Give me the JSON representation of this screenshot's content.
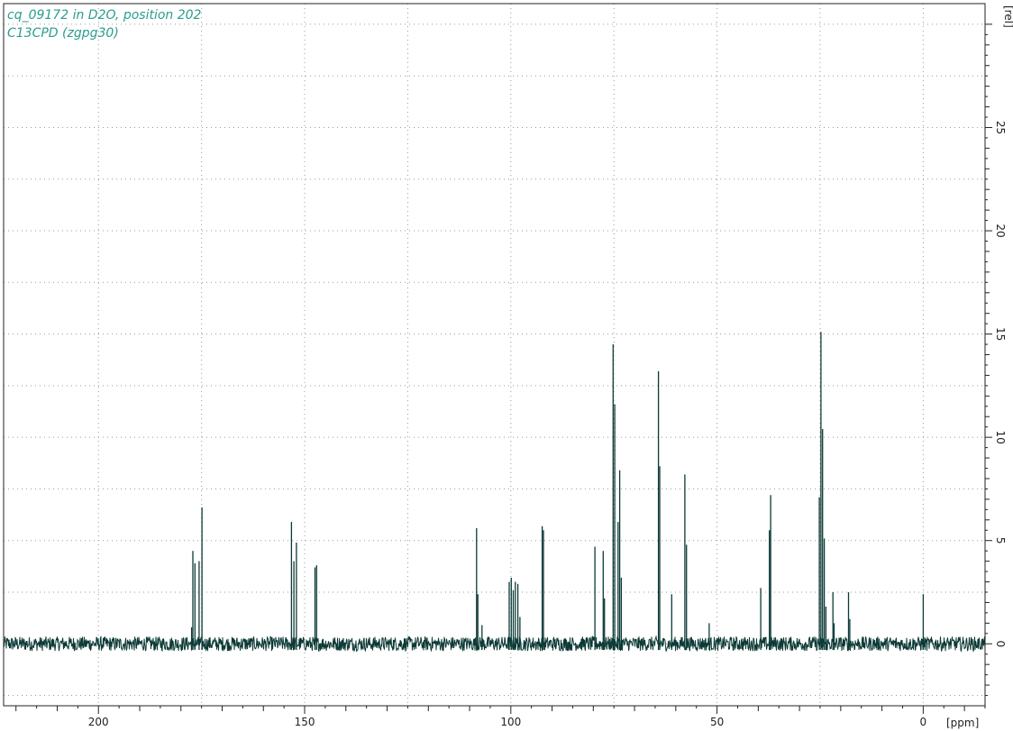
{
  "colors": {
    "title": "#2a9d8f",
    "spectrum": "#0c3a36",
    "grid": "#9a9a9a",
    "axis": "#222222"
  },
  "chart_data": {
    "type": "line",
    "title_lines": [
      "cq_09172 in D2O, position 202",
      "C13CPD (zgpg30)"
    ],
    "xlabel": "[ppm]",
    "ylabel": "[rel]",
    "xlim": [
      223,
      -15
    ],
    "ylim": [
      -3,
      31
    ],
    "x_reversed": true,
    "grid": true,
    "x_ticks_major": [
      200,
      150,
      100,
      50,
      0
    ],
    "y_ticks_major": [
      0,
      5,
      10,
      15,
      20,
      25
    ],
    "noise_level": 0.35,
    "baseline": 0,
    "peaks": [
      {
        "x": 177.4,
        "y": 0.8
      },
      {
        "x": 177.1,
        "y": 4.5
      },
      {
        "x": 176.6,
        "y": 3.9
      },
      {
        "x": 175.6,
        "y": 4.0
      },
      {
        "x": 174.9,
        "y": 6.6
      },
      {
        "x": 153.2,
        "y": 5.9
      },
      {
        "x": 152.6,
        "y": 4.0
      },
      {
        "x": 152.0,
        "y": 4.9
      },
      {
        "x": 147.5,
        "y": 3.7
      },
      {
        "x": 147.1,
        "y": 3.8
      },
      {
        "x": 108.3,
        "y": 5.6
      },
      {
        "x": 108.0,
        "y": 2.4
      },
      {
        "x": 107.0,
        "y": 0.9
      },
      {
        "x": 100.4,
        "y": 3.0
      },
      {
        "x": 99.9,
        "y": 3.2
      },
      {
        "x": 99.4,
        "y": 2.6
      },
      {
        "x": 98.9,
        "y": 3.0
      },
      {
        "x": 98.3,
        "y": 2.9
      },
      {
        "x": 97.8,
        "y": 1.3
      },
      {
        "x": 92.4,
        "y": 5.7
      },
      {
        "x": 92.1,
        "y": 5.5
      },
      {
        "x": 79.6,
        "y": 4.7
      },
      {
        "x": 77.6,
        "y": 4.5
      },
      {
        "x": 77.3,
        "y": 2.2
      },
      {
        "x": 75.2,
        "y": 14.5
      },
      {
        "x": 74.8,
        "y": 11.6
      },
      {
        "x": 74.0,
        "y": 5.9
      },
      {
        "x": 73.6,
        "y": 8.4
      },
      {
        "x": 73.2,
        "y": 3.2
      },
      {
        "x": 64.2,
        "y": 13.2
      },
      {
        "x": 63.9,
        "y": 8.6
      },
      {
        "x": 61.0,
        "y": 2.4
      },
      {
        "x": 57.8,
        "y": 8.2
      },
      {
        "x": 57.4,
        "y": 4.8
      },
      {
        "x": 51.9,
        "y": 1.0
      },
      {
        "x": 39.4,
        "y": 2.7
      },
      {
        "x": 37.3,
        "y": 5.5
      },
      {
        "x": 37.0,
        "y": 7.2
      },
      {
        "x": 25.2,
        "y": 7.1
      },
      {
        "x": 24.8,
        "y": 15.1
      },
      {
        "x": 24.4,
        "y": 10.4
      },
      {
        "x": 24.0,
        "y": 5.1
      },
      {
        "x": 23.6,
        "y": 1.8
      },
      {
        "x": 21.9,
        "y": 2.5
      },
      {
        "x": 21.6,
        "y": 1.0
      },
      {
        "x": 18.1,
        "y": 2.5
      },
      {
        "x": 17.8,
        "y": 1.2
      },
      {
        "x": 0.0,
        "y": 2.4
      }
    ]
  }
}
